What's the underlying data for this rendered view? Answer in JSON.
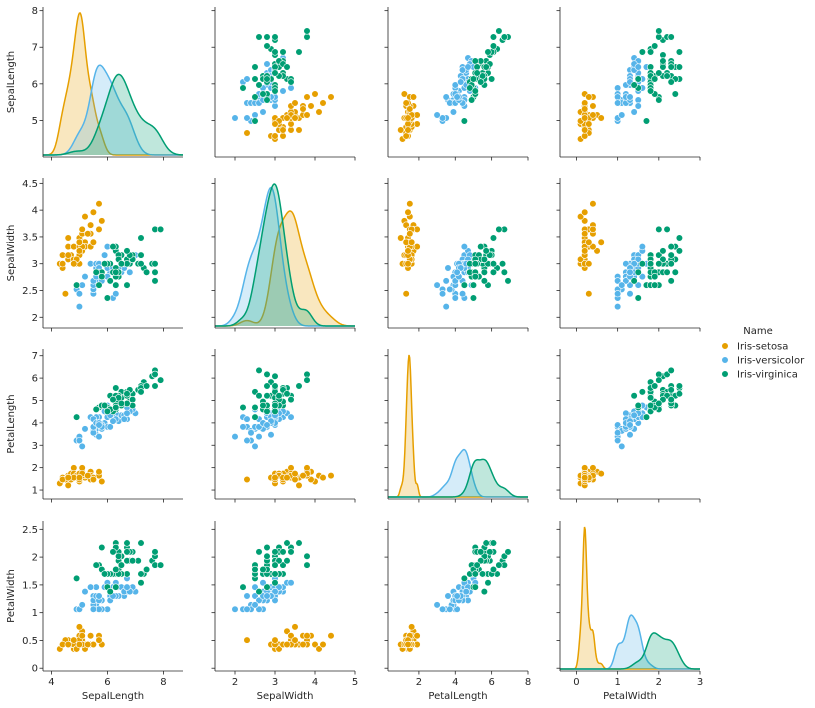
{
  "chart_data": {
    "type": "scatter",
    "subtype": "pairplot",
    "variables": [
      "SepalLength",
      "SepalWidth",
      "PetalLength",
      "PetalWidth"
    ],
    "diagonal": "kde",
    "legend": {
      "title": "Name",
      "position": "right-center"
    },
    "axes": {
      "SepalLength": {
        "range": [
          3.7,
          8.7
        ],
        "ticks": [
          4,
          6,
          8
        ],
        "diag_ticks": [
          5,
          6,
          7,
          8
        ],
        "diag_range": [
          4.0,
          8.1
        ]
      },
      "SepalWidth": {
        "range": [
          1.5,
          5.0
        ],
        "ticks": [
          2,
          3,
          4,
          5
        ],
        "diag_ticks": [
          2.0,
          2.5,
          3.0,
          3.5,
          4.0,
          4.5
        ],
        "diag_range": [
          1.8,
          4.6
        ]
      },
      "PetalLength": {
        "range": [
          0.3,
          8.0
        ],
        "ticks": [
          2,
          4,
          6,
          8
        ],
        "diag_ticks": [
          1,
          2,
          3,
          4,
          5,
          6,
          7
        ],
        "diag_range": [
          0.6,
          7.3
        ]
      },
      "PetalWidth": {
        "range": [
          -0.4,
          3.0
        ],
        "ticks": [
          0,
          1,
          2,
          3
        ],
        "diag_ticks": [
          0.0,
          0.5,
          1.0,
          1.5,
          2.0,
          2.5
        ],
        "diag_range": [
          -0.05,
          2.65
        ]
      }
    },
    "series": [
      {
        "name": "Iris-setosa",
        "color": "#E69F00",
        "points": [
          [
            5.1,
            3.5,
            1.4,
            0.2
          ],
          [
            4.9,
            3.0,
            1.4,
            0.2
          ],
          [
            4.7,
            3.2,
            1.3,
            0.2
          ],
          [
            4.6,
            3.1,
            1.5,
            0.2
          ],
          [
            5.0,
            3.6,
            1.4,
            0.2
          ],
          [
            5.4,
            3.9,
            1.7,
            0.4
          ],
          [
            4.6,
            3.4,
            1.4,
            0.3
          ],
          [
            5.0,
            3.4,
            1.5,
            0.2
          ],
          [
            4.4,
            2.9,
            1.4,
            0.2
          ],
          [
            4.9,
            3.1,
            1.5,
            0.1
          ],
          [
            5.4,
            3.7,
            1.5,
            0.2
          ],
          [
            4.8,
            3.4,
            1.6,
            0.2
          ],
          [
            4.8,
            3.0,
            1.4,
            0.1
          ],
          [
            4.3,
            3.0,
            1.1,
            0.1
          ],
          [
            5.8,
            4.0,
            1.2,
            0.2
          ],
          [
            5.7,
            4.4,
            1.5,
            0.4
          ],
          [
            5.4,
            3.9,
            1.3,
            0.4
          ],
          [
            5.1,
            3.5,
            1.4,
            0.3
          ],
          [
            5.7,
            3.8,
            1.7,
            0.3
          ],
          [
            5.1,
            3.8,
            1.5,
            0.3
          ],
          [
            5.4,
            3.4,
            1.7,
            0.2
          ],
          [
            5.1,
            3.7,
            1.5,
            0.4
          ],
          [
            4.6,
            3.6,
            1.0,
            0.2
          ],
          [
            5.1,
            3.3,
            1.7,
            0.5
          ],
          [
            4.8,
            3.4,
            1.9,
            0.2
          ],
          [
            5.0,
            3.0,
            1.6,
            0.2
          ],
          [
            5.0,
            3.4,
            1.6,
            0.4
          ],
          [
            5.2,
            3.5,
            1.5,
            0.2
          ],
          [
            5.2,
            3.4,
            1.4,
            0.2
          ],
          [
            4.7,
            3.2,
            1.6,
            0.2
          ],
          [
            4.8,
            3.1,
            1.6,
            0.2
          ],
          [
            5.4,
            3.4,
            1.5,
            0.4
          ],
          [
            5.2,
            4.1,
            1.5,
            0.1
          ],
          [
            5.5,
            4.2,
            1.4,
            0.2
          ],
          [
            4.9,
            3.1,
            1.5,
            0.1
          ],
          [
            5.0,
            3.2,
            1.2,
            0.2
          ],
          [
            5.5,
            3.5,
            1.3,
            0.2
          ],
          [
            4.9,
            3.1,
            1.5,
            0.1
          ],
          [
            4.4,
            3.0,
            1.3,
            0.2
          ],
          [
            5.1,
            3.4,
            1.5,
            0.2
          ],
          [
            5.0,
            3.5,
            1.3,
            0.3
          ],
          [
            4.5,
            2.3,
            1.3,
            0.3
          ],
          [
            4.4,
            3.2,
            1.3,
            0.2
          ],
          [
            5.0,
            3.5,
            1.6,
            0.6
          ],
          [
            5.1,
            3.8,
            1.9,
            0.4
          ],
          [
            4.8,
            3.0,
            1.4,
            0.3
          ],
          [
            5.1,
            3.8,
            1.6,
            0.2
          ],
          [
            4.6,
            3.2,
            1.4,
            0.2
          ],
          [
            5.3,
            3.7,
            1.5,
            0.2
          ],
          [
            5.0,
            3.3,
            1.4,
            0.2
          ]
        ]
      },
      {
        "name": "Iris-versicolor",
        "color": "#56B4E9",
        "points": [
          [
            7.0,
            3.2,
            4.7,
            1.4
          ],
          [
            6.4,
            3.2,
            4.5,
            1.5
          ],
          [
            6.9,
            3.1,
            4.9,
            1.5
          ],
          [
            5.5,
            2.3,
            4.0,
            1.3
          ],
          [
            6.5,
            2.8,
            4.6,
            1.5
          ],
          [
            5.7,
            2.8,
            4.5,
            1.3
          ],
          [
            6.3,
            3.3,
            4.7,
            1.6
          ],
          [
            4.9,
            2.4,
            3.3,
            1.0
          ],
          [
            6.6,
            2.9,
            4.6,
            1.3
          ],
          [
            5.2,
            2.7,
            3.9,
            1.4
          ],
          [
            5.0,
            2.0,
            3.5,
            1.0
          ],
          [
            5.9,
            3.0,
            4.2,
            1.5
          ],
          [
            6.0,
            2.2,
            4.0,
            1.0
          ],
          [
            6.1,
            2.9,
            4.7,
            1.4
          ],
          [
            5.6,
            2.9,
            3.6,
            1.3
          ],
          [
            6.7,
            3.1,
            4.4,
            1.4
          ],
          [
            5.6,
            3.0,
            4.5,
            1.5
          ],
          [
            5.8,
            2.7,
            4.1,
            1.0
          ],
          [
            6.2,
            2.2,
            4.5,
            1.5
          ],
          [
            5.6,
            2.5,
            3.9,
            1.1
          ],
          [
            5.9,
            3.2,
            4.8,
            1.8
          ],
          [
            6.1,
            2.8,
            4.0,
            1.3
          ],
          [
            6.3,
            2.5,
            4.9,
            1.5
          ],
          [
            6.1,
            2.8,
            4.7,
            1.2
          ],
          [
            6.4,
            2.9,
            4.3,
            1.3
          ],
          [
            6.6,
            3.0,
            4.4,
            1.4
          ],
          [
            6.8,
            2.8,
            4.8,
            1.4
          ],
          [
            6.7,
            3.0,
            5.0,
            1.7
          ],
          [
            6.0,
            2.9,
            4.5,
            1.5
          ],
          [
            5.7,
            2.6,
            3.5,
            1.0
          ],
          [
            5.5,
            2.4,
            3.8,
            1.1
          ],
          [
            5.5,
            2.4,
            3.7,
            1.0
          ],
          [
            5.8,
            2.7,
            3.9,
            1.2
          ],
          [
            6.0,
            2.7,
            5.1,
            1.6
          ],
          [
            5.4,
            3.0,
            4.5,
            1.5
          ],
          [
            6.0,
            3.4,
            4.5,
            1.6
          ],
          [
            6.7,
            3.1,
            4.7,
            1.5
          ],
          [
            6.3,
            2.3,
            4.4,
            1.3
          ],
          [
            5.6,
            3.0,
            4.1,
            1.3
          ],
          [
            5.5,
            2.5,
            4.0,
            1.3
          ],
          [
            5.5,
            2.6,
            4.4,
            1.2
          ],
          [
            6.1,
            3.0,
            4.6,
            1.4
          ],
          [
            5.8,
            2.6,
            4.0,
            1.2
          ],
          [
            5.0,
            2.3,
            3.3,
            1.0
          ],
          [
            5.6,
            2.7,
            4.2,
            1.3
          ],
          [
            5.7,
            3.0,
            4.2,
            1.2
          ],
          [
            5.7,
            2.9,
            4.2,
            1.3
          ],
          [
            6.2,
            2.9,
            4.3,
            1.3
          ],
          [
            5.1,
            2.5,
            3.0,
            1.1
          ],
          [
            5.7,
            2.8,
            4.1,
            1.3
          ]
        ]
      },
      {
        "name": "Iris-virginica",
        "color": "#009E73",
        "points": [
          [
            6.3,
            3.3,
            6.0,
            2.5
          ],
          [
            5.8,
            2.7,
            5.1,
            1.9
          ],
          [
            7.1,
            3.0,
            5.9,
            2.1
          ],
          [
            6.3,
            2.9,
            5.6,
            1.8
          ],
          [
            6.5,
            3.0,
            5.8,
            2.2
          ],
          [
            7.6,
            3.0,
            6.6,
            2.1
          ],
          [
            4.9,
            2.5,
            4.5,
            1.7
          ],
          [
            7.3,
            2.9,
            6.3,
            1.8
          ],
          [
            6.7,
            2.5,
            5.8,
            1.8
          ],
          [
            7.2,
            3.6,
            6.1,
            2.5
          ],
          [
            6.5,
            3.2,
            5.1,
            2.0
          ],
          [
            6.4,
            2.7,
            5.3,
            1.9
          ],
          [
            6.8,
            3.0,
            5.5,
            2.1
          ],
          [
            5.7,
            2.5,
            5.0,
            2.0
          ],
          [
            5.8,
            2.8,
            5.1,
            2.4
          ],
          [
            6.4,
            3.2,
            5.3,
            2.3
          ],
          [
            6.5,
            3.0,
            5.5,
            1.8
          ],
          [
            7.7,
            3.8,
            6.7,
            2.2
          ],
          [
            7.7,
            2.6,
            6.9,
            2.3
          ],
          [
            6.0,
            2.2,
            5.0,
            1.5
          ],
          [
            6.9,
            3.2,
            5.7,
            2.3
          ],
          [
            5.6,
            2.8,
            4.9,
            2.0
          ],
          [
            7.7,
            2.8,
            6.7,
            2.0
          ],
          [
            6.3,
            2.7,
            4.9,
            1.8
          ],
          [
            6.7,
            3.3,
            5.7,
            2.1
          ],
          [
            7.2,
            3.2,
            6.0,
            1.8
          ],
          [
            6.2,
            2.8,
            4.8,
            1.8
          ],
          [
            6.1,
            3.0,
            4.9,
            1.8
          ],
          [
            6.4,
            2.8,
            5.6,
            2.1
          ],
          [
            7.2,
            3.0,
            5.8,
            1.6
          ],
          [
            7.4,
            2.8,
            6.1,
            1.9
          ],
          [
            7.9,
            3.8,
            6.4,
            2.0
          ],
          [
            6.4,
            2.8,
            5.6,
            2.2
          ],
          [
            6.3,
            2.8,
            5.1,
            1.5
          ],
          [
            6.1,
            2.6,
            5.6,
            1.4
          ],
          [
            7.7,
            3.0,
            6.1,
            2.3
          ],
          [
            6.3,
            3.4,
            5.6,
            2.4
          ],
          [
            6.4,
            3.1,
            5.5,
            1.8
          ],
          [
            6.0,
            3.0,
            4.8,
            1.8
          ],
          [
            6.9,
            3.1,
            5.4,
            2.1
          ],
          [
            6.7,
            3.1,
            5.6,
            2.4
          ],
          [
            6.9,
            3.1,
            5.1,
            2.3
          ],
          [
            5.8,
            2.7,
            5.1,
            1.9
          ],
          [
            6.8,
            3.2,
            5.9,
            2.3
          ],
          [
            6.7,
            3.3,
            5.7,
            2.5
          ],
          [
            6.7,
            3.0,
            5.2,
            2.3
          ],
          [
            6.3,
            2.5,
            5.0,
            1.9
          ],
          [
            6.5,
            3.0,
            5.2,
            2.0
          ],
          [
            6.2,
            3.4,
            5.4,
            2.3
          ],
          [
            5.9,
            3.0,
            5.1,
            1.8
          ]
        ]
      }
    ]
  }
}
